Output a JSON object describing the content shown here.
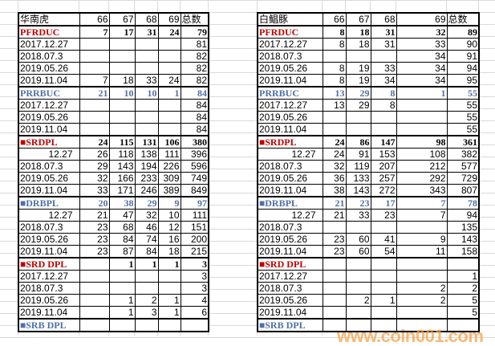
{
  "columns": [
    "66",
    "67",
    "68",
    "69",
    "总数"
  ],
  "tables": [
    {
      "title": "华南虎",
      "rows": [
        {
          "label": "PFRDUC",
          "type": "red",
          "values": [
            "7",
            "17",
            "31",
            "24",
            "79"
          ]
        },
        {
          "label": "2017.12.27",
          "values": [
            "",
            "",
            "",
            "",
            "81"
          ]
        },
        {
          "label": "2018.07.3",
          "values": [
            "",
            "",
            "",
            "",
            "82"
          ]
        },
        {
          "label": "2019.05.26",
          "values": [
            "",
            "",
            "",
            "",
            "82"
          ]
        },
        {
          "label": "2019.11.04",
          "values": [
            "7",
            "18",
            "33",
            "24",
            "82"
          ]
        },
        {
          "label": "PRRBUC",
          "type": "blue",
          "values": [
            "21",
            "10",
            "10",
            "1",
            "84"
          ]
        },
        {
          "label": "2017.12.27",
          "values": [
            "",
            "",
            "",
            "",
            "84"
          ]
        },
        {
          "label": "2019.05.26",
          "values": [
            "",
            "",
            "",
            "",
            "84"
          ]
        },
        {
          "label": "2019.11.04",
          "values": [
            "",
            "",
            "",
            "",
            "84"
          ]
        },
        {
          "label": "■SRDPL",
          "type": "red",
          "values": [
            "24",
            "115",
            "131",
            "106",
            "380"
          ]
        },
        {
          "label": "12.27",
          "indent": true,
          "values": [
            "26",
            "118",
            "138",
            "111",
            "396"
          ]
        },
        {
          "label": "2018.07.3",
          "values": [
            "29",
            "143",
            "194",
            "226",
            "596"
          ]
        },
        {
          "label": "2019.05.26",
          "values": [
            "32",
            "166",
            "233",
            "309",
            "749"
          ]
        },
        {
          "label": "2019.11.04",
          "values": [
            "33",
            "171",
            "246",
            "389",
            "849"
          ]
        },
        {
          "label": "■DRBPL",
          "type": "blue",
          "values": [
            "20",
            "38",
            "29",
            "9",
            "97"
          ]
        },
        {
          "label": "12.27",
          "indent": true,
          "values": [
            "21",
            "47",
            "32",
            "10",
            "111"
          ]
        },
        {
          "label": "2018.07.3",
          "values": [
            "23",
            "68",
            "46",
            "12",
            "151"
          ]
        },
        {
          "label": "2019.05.26",
          "values": [
            "23",
            "84",
            "74",
            "16",
            "200"
          ]
        },
        {
          "label": "2019.11.04",
          "values": [
            "23",
            "87",
            "84",
            "18",
            "215"
          ]
        },
        {
          "label": "■SRD DPL",
          "type": "red",
          "values": [
            "",
            "1",
            "1",
            "1",
            "3"
          ]
        },
        {
          "label": "2017.12.27",
          "values": [
            "",
            "",
            "",
            "",
            "3"
          ]
        },
        {
          "label": "2018.07.3",
          "values": [
            "",
            "",
            "",
            "",
            "3"
          ]
        },
        {
          "label": "2019.05.26",
          "values": [
            "",
            "1",
            "2",
            "1",
            "4"
          ]
        },
        {
          "label": "2019.11.04",
          "values": [
            "",
            "1",
            "3",
            "1",
            "6"
          ]
        },
        {
          "label": "■SRB DPL",
          "type": "blue",
          "values": [
            "",
            "",
            "",
            "",
            ""
          ]
        }
      ]
    },
    {
      "title": "白鲳豚",
      "rows": [
        {
          "label": "PFRDUC",
          "type": "red",
          "values": [
            "8",
            "18",
            "31",
            "32",
            "89"
          ]
        },
        {
          "label": "2017.12.27",
          "values": [
            "8",
            "18",
            "31",
            "33",
            "90"
          ]
        },
        {
          "label": "2018.07.3",
          "values": [
            "",
            "",
            "",
            "34",
            "91"
          ]
        },
        {
          "label": "2019.05.26",
          "values": [
            "8",
            "19",
            "33",
            "34",
            "94"
          ]
        },
        {
          "label": "2019.11.04",
          "values": [
            "8",
            "19",
            "34",
            "34",
            "95"
          ]
        },
        {
          "label": "PRRBUC",
          "type": "blue",
          "values": [
            "13",
            "29",
            "8",
            "1",
            "55"
          ]
        },
        {
          "label": "2017.12.27",
          "values": [
            "13",
            "29",
            "8",
            "",
            "55"
          ]
        },
        {
          "label": "2019.05.26",
          "values": [
            "",
            "",
            "",
            "",
            "55"
          ]
        },
        {
          "label": "2019.11.04",
          "values": [
            "",
            "",
            "",
            "",
            "55"
          ]
        },
        {
          "label": "■SRDPL",
          "type": "red",
          "values": [
            "24",
            "86",
            "147",
            "98",
            "361"
          ]
        },
        {
          "label": "12.27",
          "indent": true,
          "values": [
            "24",
            "91",
            "153",
            "108",
            "382"
          ]
        },
        {
          "label": "2018.07.3",
          "values": [
            "32",
            "119",
            "207",
            "212",
            "577"
          ]
        },
        {
          "label": "2019.05.26",
          "values": [
            "36",
            "133",
            "257",
            "292",
            "729"
          ]
        },
        {
          "label": "2019.11.04",
          "values": [
            "38",
            "143",
            "272",
            "343",
            "807"
          ]
        },
        {
          "label": "■DRBPL",
          "type": "blue",
          "values": [
            "21",
            "23",
            "17",
            "7",
            "78"
          ]
        },
        {
          "label": "12.27",
          "indent": true,
          "values": [
            "21",
            "33",
            "23",
            "7",
            "94"
          ]
        },
        {
          "label": "2018.07.3",
          "values": [
            "",
            "",
            "",
            "",
            "135"
          ]
        },
        {
          "label": "2019.05.26",
          "values": [
            "23",
            "60",
            "41",
            "9",
            "143"
          ]
        },
        {
          "label": "2019.11.04",
          "values": [
            "23",
            "60",
            "54",
            "11",
            "158"
          ]
        },
        {
          "label": "■SRD DPL",
          "type": "red",
          "values": [
            "",
            "",
            "",
            "",
            ""
          ]
        },
        {
          "label": "2017.12.27",
          "values": [
            "",
            "",
            "",
            "",
            "1"
          ]
        },
        {
          "label": "2018.07.3",
          "values": [
            "",
            "",
            "",
            "2",
            "2"
          ]
        },
        {
          "label": "2019.05.26",
          "values": [
            "",
            "2",
            "1",
            "2",
            "5"
          ]
        },
        {
          "label": "2019.11.04",
          "values": [
            "",
            "",
            "",
            "",
            "5"
          ]
        },
        {
          "label": "■SRB DPL",
          "type": "blue",
          "values": [
            "",
            "",
            "",
            "",
            ""
          ]
        }
      ]
    }
  ],
  "colors": {
    "red": "#c00000",
    "blue": "#4f6fa8",
    "watermark": "#f5a046"
  },
  "watermark": "www.coin001.com"
}
